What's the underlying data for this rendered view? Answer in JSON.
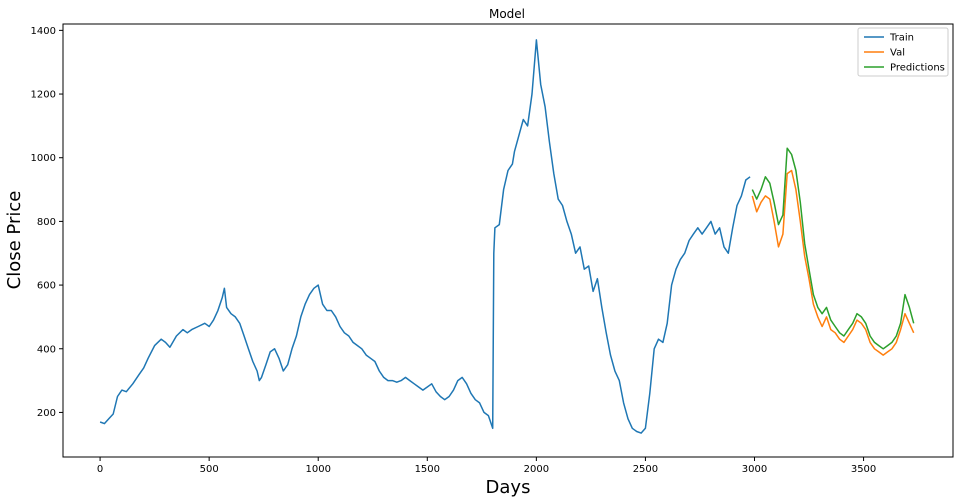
{
  "chart_data": {
    "type": "line",
    "title": "Model",
    "xlabel": "Days",
    "ylabel": "Close Price",
    "xlim": [
      -170,
      3910
    ],
    "ylim": [
      60,
      1420
    ],
    "xticks": [
      0,
      500,
      1000,
      1500,
      2000,
      2500,
      3000,
      3500
    ],
    "yticks": [
      200,
      400,
      600,
      800,
      1000,
      1200,
      1400
    ],
    "grid": false,
    "legend_position": "top-right",
    "series": [
      {
        "name": "Train",
        "color": "#1f77b4",
        "points": [
          [
            0,
            170
          ],
          [
            20,
            165
          ],
          [
            40,
            180
          ],
          [
            60,
            195
          ],
          [
            80,
            250
          ],
          [
            100,
            270
          ],
          [
            120,
            265
          ],
          [
            150,
            290
          ],
          [
            180,
            320
          ],
          [
            200,
            340
          ],
          [
            220,
            370
          ],
          [
            250,
            410
          ],
          [
            280,
            430
          ],
          [
            300,
            420
          ],
          [
            320,
            405
          ],
          [
            350,
            440
          ],
          [
            380,
            460
          ],
          [
            400,
            450
          ],
          [
            420,
            460
          ],
          [
            450,
            470
          ],
          [
            480,
            480
          ],
          [
            500,
            470
          ],
          [
            520,
            490
          ],
          [
            540,
            520
          ],
          [
            560,
            560
          ],
          [
            570,
            590
          ],
          [
            580,
            530
          ],
          [
            600,
            510
          ],
          [
            620,
            500
          ],
          [
            640,
            480
          ],
          [
            660,
            440
          ],
          [
            680,
            400
          ],
          [
            700,
            360
          ],
          [
            720,
            330
          ],
          [
            730,
            300
          ],
          [
            740,
            310
          ],
          [
            760,
            350
          ],
          [
            780,
            390
          ],
          [
            800,
            400
          ],
          [
            820,
            370
          ],
          [
            840,
            330
          ],
          [
            860,
            350
          ],
          [
            880,
            400
          ],
          [
            900,
            440
          ],
          [
            920,
            500
          ],
          [
            940,
            540
          ],
          [
            960,
            570
          ],
          [
            980,
            590
          ],
          [
            1000,
            600
          ],
          [
            1020,
            540
          ],
          [
            1040,
            520
          ],
          [
            1060,
            520
          ],
          [
            1080,
            500
          ],
          [
            1100,
            470
          ],
          [
            1120,
            450
          ],
          [
            1140,
            440
          ],
          [
            1160,
            420
          ],
          [
            1180,
            410
          ],
          [
            1200,
            400
          ],
          [
            1220,
            380
          ],
          [
            1240,
            370
          ],
          [
            1260,
            360
          ],
          [
            1280,
            330
          ],
          [
            1300,
            310
          ],
          [
            1320,
            300
          ],
          [
            1340,
            300
          ],
          [
            1360,
            295
          ],
          [
            1380,
            300
          ],
          [
            1400,
            310
          ],
          [
            1420,
            300
          ],
          [
            1440,
            290
          ],
          [
            1460,
            280
          ],
          [
            1480,
            270
          ],
          [
            1500,
            280
          ],
          [
            1520,
            290
          ],
          [
            1540,
            265
          ],
          [
            1560,
            250
          ],
          [
            1580,
            240
          ],
          [
            1600,
            250
          ],
          [
            1620,
            270
          ],
          [
            1640,
            300
          ],
          [
            1660,
            310
          ],
          [
            1680,
            290
          ],
          [
            1700,
            260
          ],
          [
            1720,
            240
          ],
          [
            1740,
            230
          ],
          [
            1760,
            200
          ],
          [
            1780,
            190
          ],
          [
            1800,
            150
          ],
          [
            1805,
            700
          ],
          [
            1810,
            780
          ],
          [
            1830,
            790
          ],
          [
            1850,
            900
          ],
          [
            1870,
            960
          ],
          [
            1890,
            980
          ],
          [
            1900,
            1020
          ],
          [
            1920,
            1070
          ],
          [
            1940,
            1120
          ],
          [
            1960,
            1100
          ],
          [
            1980,
            1200
          ],
          [
            2000,
            1370
          ],
          [
            2020,
            1230
          ],
          [
            2040,
            1160
          ],
          [
            2060,
            1050
          ],
          [
            2080,
            950
          ],
          [
            2100,
            870
          ],
          [
            2120,
            850
          ],
          [
            2140,
            800
          ],
          [
            2160,
            760
          ],
          [
            2180,
            700
          ],
          [
            2200,
            720
          ],
          [
            2220,
            650
          ],
          [
            2240,
            660
          ],
          [
            2260,
            580
          ],
          [
            2280,
            620
          ],
          [
            2300,
            530
          ],
          [
            2320,
            450
          ],
          [
            2340,
            380
          ],
          [
            2360,
            330
          ],
          [
            2380,
            300
          ],
          [
            2400,
            230
          ],
          [
            2420,
            180
          ],
          [
            2440,
            150
          ],
          [
            2460,
            140
          ],
          [
            2480,
            135
          ],
          [
            2500,
            150
          ],
          [
            2520,
            260
          ],
          [
            2540,
            400
          ],
          [
            2560,
            430
          ],
          [
            2580,
            420
          ],
          [
            2600,
            480
          ],
          [
            2620,
            600
          ],
          [
            2640,
            650
          ],
          [
            2660,
            680
          ],
          [
            2680,
            700
          ],
          [
            2700,
            740
          ],
          [
            2720,
            760
          ],
          [
            2740,
            780
          ],
          [
            2760,
            760
          ],
          [
            2780,
            780
          ],
          [
            2800,
            800
          ],
          [
            2820,
            760
          ],
          [
            2840,
            780
          ],
          [
            2860,
            720
          ],
          [
            2880,
            700
          ],
          [
            2900,
            780
          ],
          [
            2920,
            850
          ],
          [
            2940,
            880
          ],
          [
            2960,
            930
          ],
          [
            2980,
            940
          ]
        ]
      },
      {
        "name": "Val",
        "color": "#ff7f0e",
        "points": [
          [
            2990,
            880
          ],
          [
            3010,
            830
          ],
          [
            3030,
            860
          ],
          [
            3050,
            880
          ],
          [
            3070,
            870
          ],
          [
            3090,
            800
          ],
          [
            3110,
            720
          ],
          [
            3130,
            760
          ],
          [
            3150,
            950
          ],
          [
            3170,
            960
          ],
          [
            3190,
            900
          ],
          [
            3210,
            800
          ],
          [
            3230,
            690
          ],
          [
            3250,
            620
          ],
          [
            3270,
            540
          ],
          [
            3290,
            500
          ],
          [
            3310,
            470
          ],
          [
            3330,
            500
          ],
          [
            3350,
            460
          ],
          [
            3370,
            450
          ],
          [
            3390,
            430
          ],
          [
            3410,
            420
          ],
          [
            3430,
            440
          ],
          [
            3450,
            460
          ],
          [
            3470,
            490
          ],
          [
            3490,
            480
          ],
          [
            3510,
            460
          ],
          [
            3530,
            420
          ],
          [
            3550,
            400
          ],
          [
            3570,
            390
          ],
          [
            3590,
            380
          ],
          [
            3610,
            390
          ],
          [
            3630,
            400
          ],
          [
            3650,
            420
          ],
          [
            3670,
            460
          ],
          [
            3690,
            510
          ],
          [
            3710,
            480
          ],
          [
            3730,
            450
          ]
        ]
      },
      {
        "name": "Predictions",
        "color": "#2ca02c",
        "points": [
          [
            2990,
            900
          ],
          [
            3010,
            870
          ],
          [
            3030,
            900
          ],
          [
            3050,
            940
          ],
          [
            3070,
            920
          ],
          [
            3090,
            860
          ],
          [
            3110,
            790
          ],
          [
            3130,
            820
          ],
          [
            3150,
            1030
          ],
          [
            3170,
            1010
          ],
          [
            3190,
            960
          ],
          [
            3210,
            860
          ],
          [
            3230,
            730
          ],
          [
            3250,
            650
          ],
          [
            3270,
            570
          ],
          [
            3290,
            530
          ],
          [
            3310,
            510
          ],
          [
            3330,
            530
          ],
          [
            3350,
            490
          ],
          [
            3370,
            470
          ],
          [
            3390,
            450
          ],
          [
            3410,
            440
          ],
          [
            3430,
            460
          ],
          [
            3450,
            480
          ],
          [
            3470,
            510
          ],
          [
            3490,
            500
          ],
          [
            3510,
            480
          ],
          [
            3530,
            440
          ],
          [
            3550,
            420
          ],
          [
            3570,
            410
          ],
          [
            3590,
            400
          ],
          [
            3610,
            410
          ],
          [
            3630,
            420
          ],
          [
            3650,
            440
          ],
          [
            3670,
            480
          ],
          [
            3690,
            570
          ],
          [
            3710,
            530
          ],
          [
            3730,
            480
          ]
        ]
      }
    ]
  }
}
